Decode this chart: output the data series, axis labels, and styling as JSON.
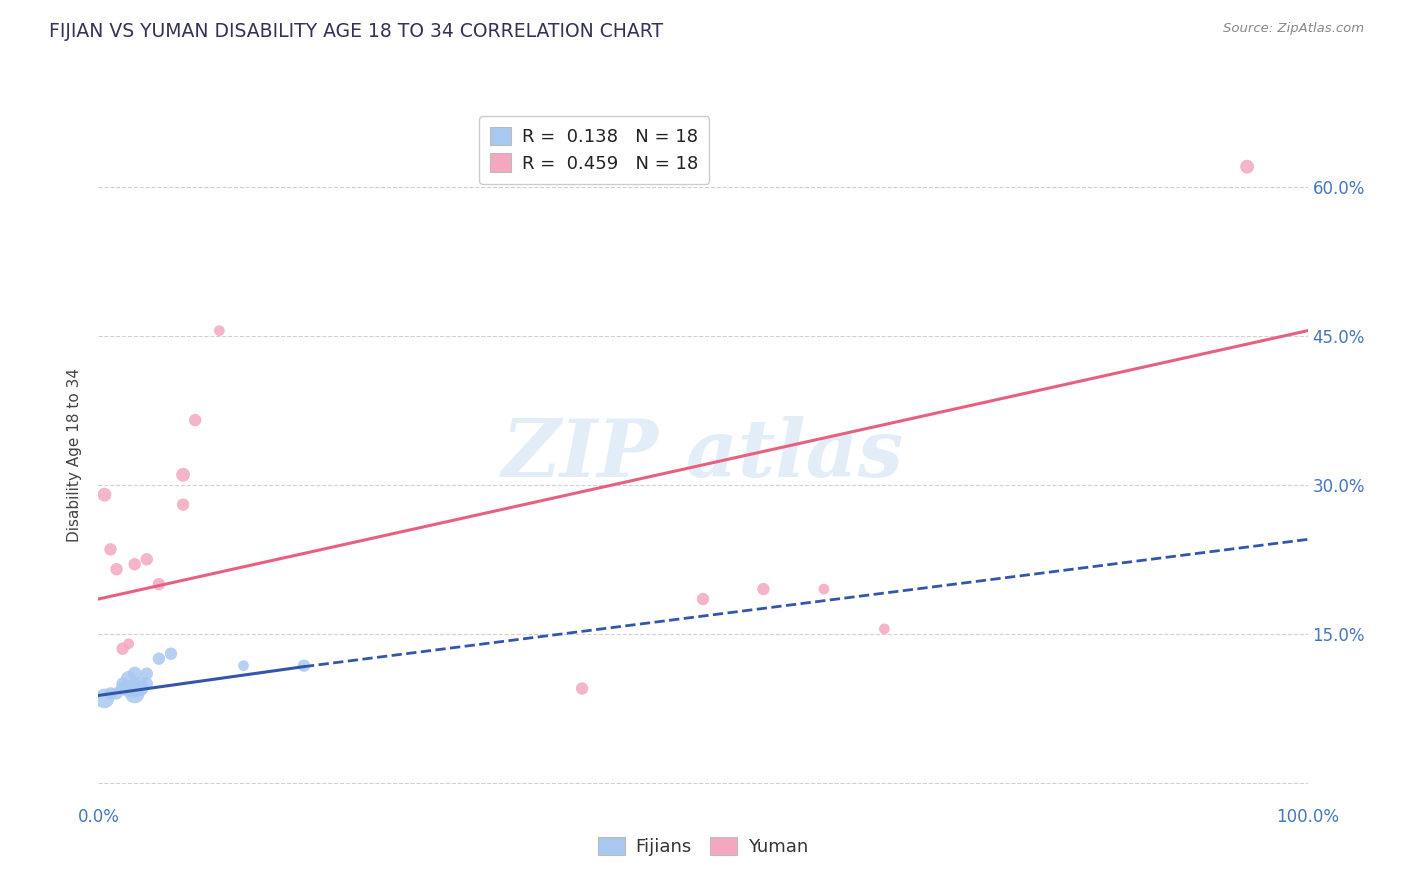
{
  "title": "FIJIAN VS YUMAN DISABILITY AGE 18 TO 34 CORRELATION CHART",
  "source": "Source: ZipAtlas.com",
  "ylabel_label": "Disability Age 18 to 34",
  "xlim": [
    0.0,
    1.0
  ],
  "ylim": [
    -0.02,
    0.68
  ],
  "xtick_positions": [
    0.0,
    0.25,
    0.5,
    0.75,
    1.0
  ],
  "xtick_labels": [
    "0.0%",
    "",
    "",
    "",
    "100.0%"
  ],
  "ytick_positions": [
    0.0,
    0.15,
    0.3,
    0.45,
    0.6
  ],
  "ytick_labels": [
    "",
    "15.0%",
    "30.0%",
    "45.0%",
    "60.0%"
  ],
  "legend_r_fijian": "0.138",
  "legend_n_fijian": "18",
  "legend_r_yuman": "0.459",
  "legend_n_yuman": "18",
  "fijian_color": "#a8c8f0",
  "yuman_color": "#f4a8c0",
  "fijian_line_color": "#3355aa",
  "yuman_line_color": "#e86080",
  "background_color": "#ffffff",
  "grid_color": "#d0d0d0",
  "fijian_x": [
    0.005,
    0.01,
    0.015,
    0.02,
    0.02,
    0.025,
    0.025,
    0.03,
    0.03,
    0.03,
    0.035,
    0.035,
    0.04,
    0.04,
    0.05,
    0.06,
    0.12,
    0.17
  ],
  "fijian_y": [
    0.085,
    0.09,
    0.09,
    0.095,
    0.1,
    0.095,
    0.105,
    0.09,
    0.095,
    0.11,
    0.095,
    0.1,
    0.1,
    0.11,
    0.125,
    0.13,
    0.118,
    0.118
  ],
  "fijian_sizes": [
    200,
    80,
    80,
    100,
    80,
    150,
    120,
    200,
    180,
    100,
    120,
    100,
    80,
    80,
    80,
    80,
    60,
    80
  ],
  "yuman_x": [
    0.005,
    0.01,
    0.015,
    0.02,
    0.025,
    0.03,
    0.04,
    0.05,
    0.07,
    0.07,
    0.08,
    0.1,
    0.4,
    0.5,
    0.55,
    0.6,
    0.65,
    0.95
  ],
  "yuman_y": [
    0.29,
    0.235,
    0.215,
    0.135,
    0.14,
    0.22,
    0.225,
    0.2,
    0.31,
    0.28,
    0.365,
    0.455,
    0.095,
    0.185,
    0.195,
    0.195,
    0.155,
    0.62
  ],
  "yuman_sizes": [
    100,
    80,
    80,
    80,
    60,
    80,
    80,
    80,
    100,
    80,
    80,
    60,
    80,
    80,
    80,
    60,
    60,
    100
  ],
  "yuman_line_x0": 0.0,
  "yuman_line_y0": 0.185,
  "yuman_line_x1": 1.0,
  "yuman_line_y1": 0.455,
  "fijian_line_x0": 0.0,
  "fijian_line_y0": 0.088,
  "fijian_line_x1": 0.17,
  "fijian_line_x1_solid": 0.17,
  "fijian_line_y1": 0.117,
  "fijian_line_x2": 1.0,
  "fijian_line_y2": 0.245
}
